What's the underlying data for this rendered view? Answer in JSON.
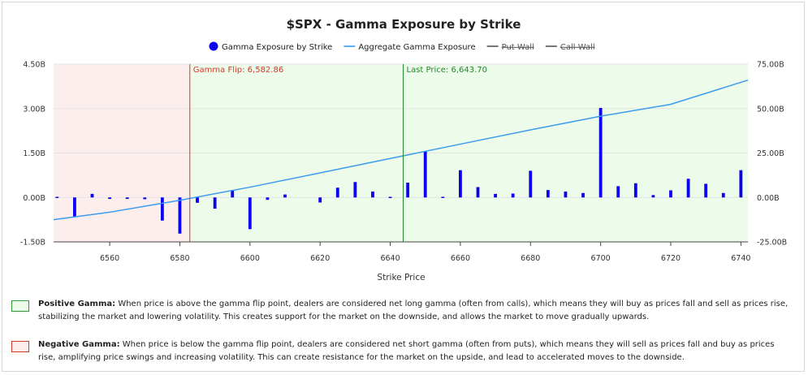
{
  "chart_data": {
    "type": "bar",
    "title": "$SPX - Gamma Exposure by Strike",
    "xlabel": "Strike Price",
    "ylabel_left": "",
    "ylabel_right": "",
    "xlim": [
      6544,
      6742
    ],
    "ylim_left": [
      -1.5,
      4.5
    ],
    "ylim_right": [
      -25,
      75
    ],
    "x_ticks": [
      6560,
      6580,
      6600,
      6620,
      6640,
      6660,
      6680,
      6700,
      6720,
      6740
    ],
    "y_ticks_left": [
      {
        "value": -1.5,
        "label": "-1.50B"
      },
      {
        "value": 0,
        "label": "0.00B"
      },
      {
        "value": 1.5,
        "label": "1.50B"
      },
      {
        "value": 3.0,
        "label": "3.00B"
      },
      {
        "value": 4.5,
        "label": "4.50B"
      }
    ],
    "y_ticks_right": [
      {
        "value": -25,
        "label": "-25.00B"
      },
      {
        "value": 0,
        "label": "0.00B"
      },
      {
        "value": 25,
        "label": "25.00B"
      },
      {
        "value": 50,
        "label": "50.00B"
      },
      {
        "value": 75,
        "label": "75.00B"
      }
    ],
    "legend": [
      {
        "label": "Gamma Exposure by Strike",
        "color": "#0a00ee",
        "marker": "circle"
      },
      {
        "label": "Aggregate Gamma Exposure",
        "color": "#3b9bee",
        "marker": "line"
      },
      {
        "label": "Put Wall",
        "color": "#555555",
        "marker": "line",
        "struck": true
      },
      {
        "label": "Call Wall",
        "color": "#555555",
        "marker": "line",
        "struck": true
      }
    ],
    "series": [
      {
        "name": "Gamma Exposure by Strike",
        "axis": "left",
        "x": [
          6545,
          6550,
          6555,
          6560,
          6565,
          6570,
          6575,
          6580,
          6585,
          6590,
          6595,
          6600,
          6605,
          6610,
          6620,
          6625,
          6630,
          6635,
          6640,
          6645,
          6650,
          6655,
          6660,
          6665,
          6670,
          6675,
          6680,
          6685,
          6690,
          6695,
          6700,
          6705,
          6710,
          6715,
          6720,
          6725,
          6730,
          6735,
          6740
        ],
        "values": [
          0.0,
          -0.65,
          0.12,
          -0.05,
          -0.05,
          -0.06,
          -0.78,
          -1.22,
          -0.18,
          -0.38,
          0.25,
          -1.07,
          -0.08,
          0.1,
          -0.17,
          0.33,
          0.52,
          0.2,
          -0.04,
          0.5,
          1.55,
          0.02,
          0.92,
          0.35,
          0.12,
          0.13,
          0.9,
          0.25,
          0.2,
          0.15,
          3.02,
          0.38,
          0.48,
          0.08,
          0.24,
          0.63,
          0.46,
          0.15,
          0.92
        ]
      },
      {
        "name": "Aggregate Gamma Exposure",
        "axis": "right",
        "x": [
          6544,
          6560,
          6580,
          6600,
          6620,
          6640,
          6660,
          6680,
          6700,
          6720,
          6742
        ],
        "values": [
          -12.5,
          -8.3,
          -1.6,
          5.8,
          13.8,
          21.9,
          30.0,
          38.0,
          45.7,
          52.4,
          66.0
        ]
      }
    ],
    "regions": [
      {
        "name": "Negative Gamma",
        "from": 6544,
        "to": 6582.86,
        "color": "#fdeeee"
      },
      {
        "name": "Positive Gamma",
        "from": 6582.86,
        "to": 6742,
        "color": "#edfbea"
      }
    ],
    "annotations": [
      {
        "label": "Gamma Flip: 6,582.86",
        "x": 6582.86,
        "color": "#d23a2a"
      },
      {
        "label": "Last Price: 6,643.70",
        "x": 6643.7,
        "color": "#22882a"
      }
    ]
  },
  "notes": [
    {
      "heading": "Positive Gamma:",
      "text": "When price is above the gamma flip point, dealers are considered net long gamma (often from calls), which means they will buy as prices fall and sell as prices rise, stabilizing the market and lowering volatility. This creates support for the market on the downside, and allows the market to move gradually upwards.",
      "swatch_fill": "#edfbea",
      "swatch_border": "#2f9a36"
    },
    {
      "heading": "Negative Gamma:",
      "text": "When price is below the gamma flip point, dealers are considered net short gamma (often from puts), which means they will sell as prices fall and buy as prices rise, amplifying price swings and increasing volatility. This can create resistance for the market on the upside, and lead to accelerated moves to the downside.",
      "swatch_fill": "#fdeeee",
      "swatch_border": "#d23a2a"
    }
  ]
}
